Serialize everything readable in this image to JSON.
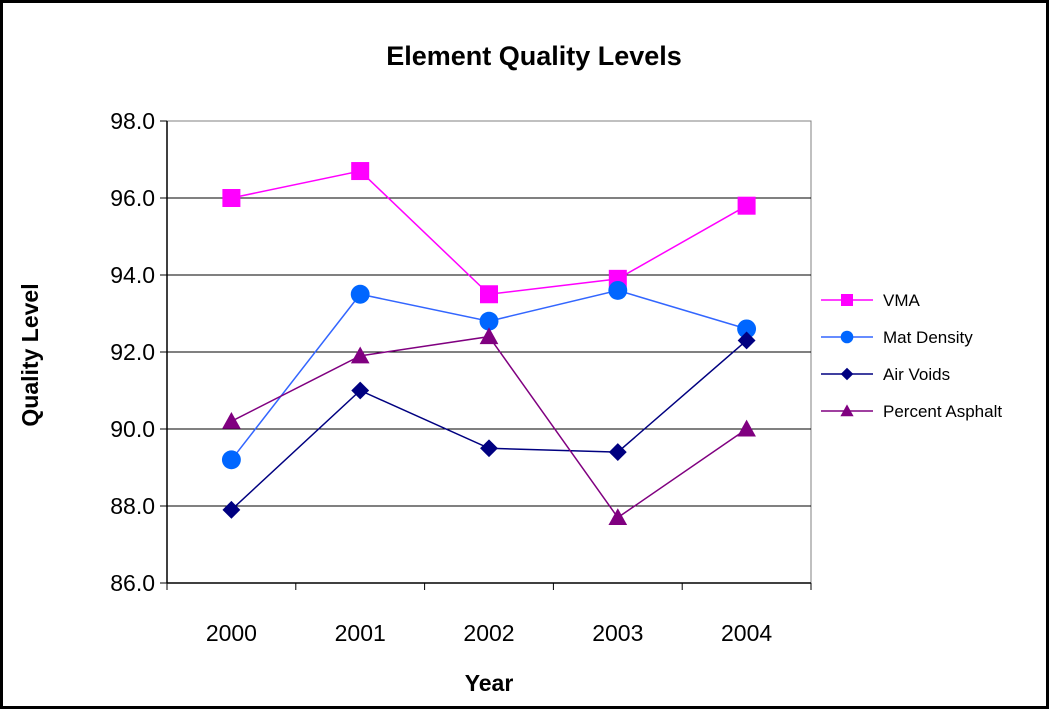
{
  "chart_data": {
    "type": "line",
    "title": "Element Quality Levels",
    "xlabel": "Year",
    "ylabel": "Quality Level",
    "categories": [
      "2000",
      "2001",
      "2002",
      "2003",
      "2004"
    ],
    "ylim": [
      86.0,
      98.0
    ],
    "yticks": [
      "86.0",
      "88.0",
      "90.0",
      "92.0",
      "94.0",
      "96.0",
      "98.0"
    ],
    "ytick_values": [
      86,
      88,
      90,
      92,
      94,
      96,
      98
    ],
    "grid": true,
    "legend": "right",
    "series": [
      {
        "name": "VMA",
        "values": [
          96.0,
          96.7,
          93.5,
          93.9,
          95.8
        ],
        "color": "#FF00FF",
        "marker": "square"
      },
      {
        "name": "Mat Density",
        "values": [
          89.2,
          93.5,
          92.8,
          93.6,
          92.6
        ],
        "color": "#0066FF",
        "marker": "circle",
        "line_color": "#3366FF"
      },
      {
        "name": "Air Voids",
        "values": [
          87.9,
          91.0,
          89.5,
          89.4,
          92.3
        ],
        "color": "#000080",
        "marker": "diamond"
      },
      {
        "name": "Percent Asphalt",
        "values": [
          90.2,
          91.9,
          92.4,
          87.7,
          90.0
        ],
        "color": "#800080",
        "marker": "triangle"
      }
    ]
  }
}
